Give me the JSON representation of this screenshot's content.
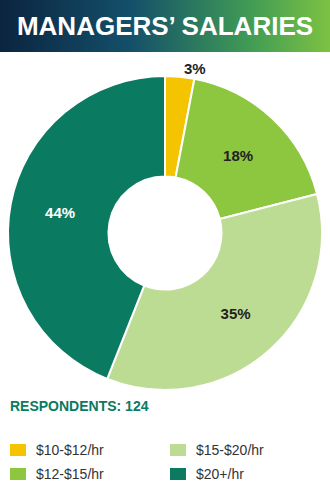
{
  "chart_data": {
    "type": "pie",
    "title": "MANAGERS’ SALARIES",
    "subtitle": "RESPONDENTS: 124",
    "categories": [
      "$10-$12/hr",
      "$12-$15/hr",
      "$15-$20/hr",
      "$20+/hr"
    ],
    "values": [
      3,
      18,
      35,
      44
    ],
    "value_labels": [
      "3%",
      "18%",
      "35%",
      "44%"
    ],
    "colors": [
      "#f5c400",
      "#8dc63f",
      "#bddc93",
      "#0a7a61"
    ],
    "data_labels": true,
    "legend": "bottom"
  }
}
